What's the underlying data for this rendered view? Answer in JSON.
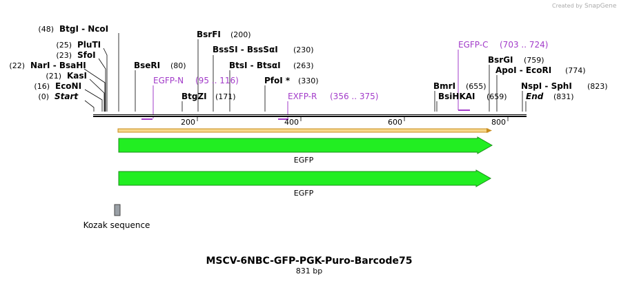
{
  "watermark": {
    "prefix": "Created by",
    "brand": "SnapGene"
  },
  "left_sites": [
    {
      "pos": "(48)",
      "name": "BtgI  -  NcoI"
    },
    {
      "pos": "(25)",
      "name": "PluTI"
    },
    {
      "pos": "(23)",
      "name": "SfoI"
    },
    {
      "pos": "(22)",
      "name": "NarI  -  BsaHI"
    },
    {
      "pos": "(21)",
      "name": "KasI"
    },
    {
      "pos": "(16)",
      "name": "EcoNI"
    },
    {
      "pos": "(0)",
      "name": "Start"
    }
  ],
  "right_sites": [
    {
      "name": "BsrFI",
      "pos": "(200)"
    },
    {
      "name": "BssSI  -  BssSαI",
      "pos": "(230)"
    },
    {
      "name": "BtsI  -  BtsαI",
      "pos": "(263)"
    },
    {
      "name": "BseRI",
      "pos": "(80)"
    },
    {
      "name": "PfoI *",
      "pos": "(330)"
    },
    {
      "name": "BtgZI",
      "pos": "(171)"
    },
    {
      "name": "BmrI",
      "pos": "(655)"
    },
    {
      "name": "BsiHKAI",
      "pos": "(659)"
    },
    {
      "name": "BsrGI",
      "pos": "(759)"
    },
    {
      "name": "ApoI  -  EcoRI",
      "pos": "(774)"
    },
    {
      "name": "NspI  -  SphI",
      "pos": "(823)"
    },
    {
      "name": "End",
      "pos": "(831)"
    }
  ],
  "primers": [
    {
      "name": "EGFP-N",
      "range": "(95 .. 116)"
    },
    {
      "name": "EXFP-R",
      "range": "(356 .. 375)"
    },
    {
      "name": "EGFP-C",
      "range": "(703 .. 724)"
    }
  ],
  "ruler": [
    "200",
    "400",
    "600",
    "800"
  ],
  "features": [
    "EGFP",
    "EGFP",
    "Kozak sequence"
  ],
  "title": "MSCV-6NBC-GFP-PGK-Puro-Barcode75",
  "length": "831 bp"
}
